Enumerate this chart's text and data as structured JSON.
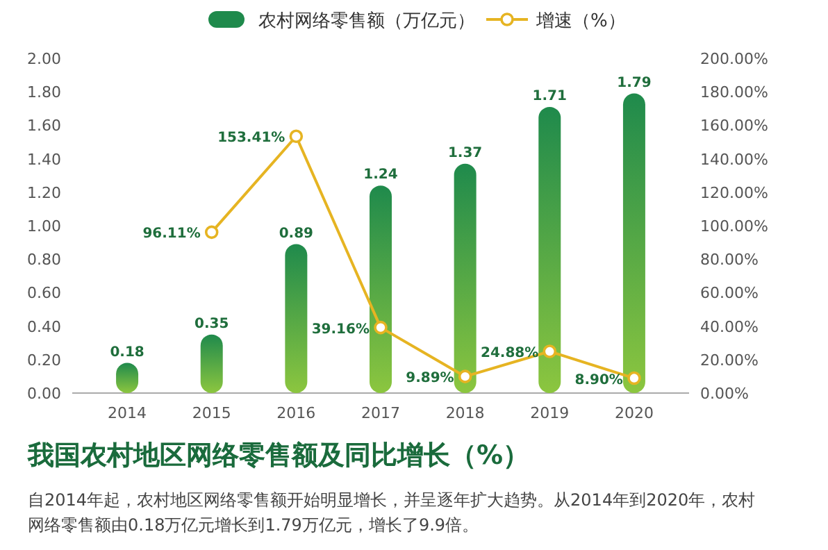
{
  "chart_data": {
    "type": "bar",
    "title": "我国农村地区网络零售额及同比增长（%）",
    "annotations": [
      "自2014年起，农村地区网络零售额开始明显增长，并呈逐年扩大趋势。从2014年到2020年，农村网络零售额由0.18万亿元增长到1.79万亿元，增长了9.9倍。"
    ],
    "categories": [
      "2014",
      "2015",
      "2016",
      "2017",
      "2018",
      "2019",
      "2020"
    ],
    "series": [
      {
        "name": "农村网络零售额（万亿元）",
        "color": "#1f8a4c",
        "values": [
          0.18,
          0.35,
          0.89,
          1.24,
          1.37,
          1.71,
          1.79
        ],
        "value_labels": [
          "0.18",
          "0.35",
          "0.89",
          "1.24",
          "1.37",
          "1.71",
          "1.79"
        ]
      },
      {
        "name": "增速（%）",
        "type": "line",
        "axis": "y2",
        "color": "#e6b422",
        "marker": "circle",
        "values": [
          null,
          96.11,
          153.41,
          39.16,
          9.89,
          24.88,
          8.9
        ],
        "value_labels": [
          null,
          "96.11%",
          "153.41%",
          "39.16%",
          "9.89%",
          "24.88%",
          "8.90%"
        ]
      }
    ],
    "ylim": [
      0,
      2
    ],
    "yticks": [
      {
        "value": 0,
        "label": "0.00"
      },
      {
        "value": 0.2,
        "label": "0.20"
      },
      {
        "value": 0.4,
        "label": "0.40"
      },
      {
        "value": 0.6,
        "label": "0.60"
      },
      {
        "value": 0.8,
        "label": "0.80"
      },
      {
        "value": 1,
        "label": "1.00"
      },
      {
        "value": 1.2,
        "label": "1.20"
      },
      {
        "value": 1.4,
        "label": "1.40"
      },
      {
        "value": 1.6,
        "label": "1.60"
      },
      {
        "value": 1.8,
        "label": "1.80"
      },
      {
        "value": 2,
        "label": "2.00"
      }
    ],
    "y2lim": [
      0,
      200
    ],
    "y2ticks": [
      {
        "value": 0,
        "label": "0.00%"
      },
      {
        "value": 20,
        "label": "20.00%"
      },
      {
        "value": 40,
        "label": "40.00%"
      },
      {
        "value": 60,
        "label": "60.00%"
      },
      {
        "value": 80,
        "label": "80.00%"
      },
      {
        "value": 100,
        "label": "100.00%"
      },
      {
        "value": 120,
        "label": "120.00%"
      },
      {
        "value": 140,
        "label": "140.00%"
      },
      {
        "value": 160,
        "label": "160.00%"
      },
      {
        "value": 180,
        "label": "180.00%"
      },
      {
        "value": 200,
        "label": "200.00%"
      }
    ],
    "legend": "top",
    "grid": false
  }
}
